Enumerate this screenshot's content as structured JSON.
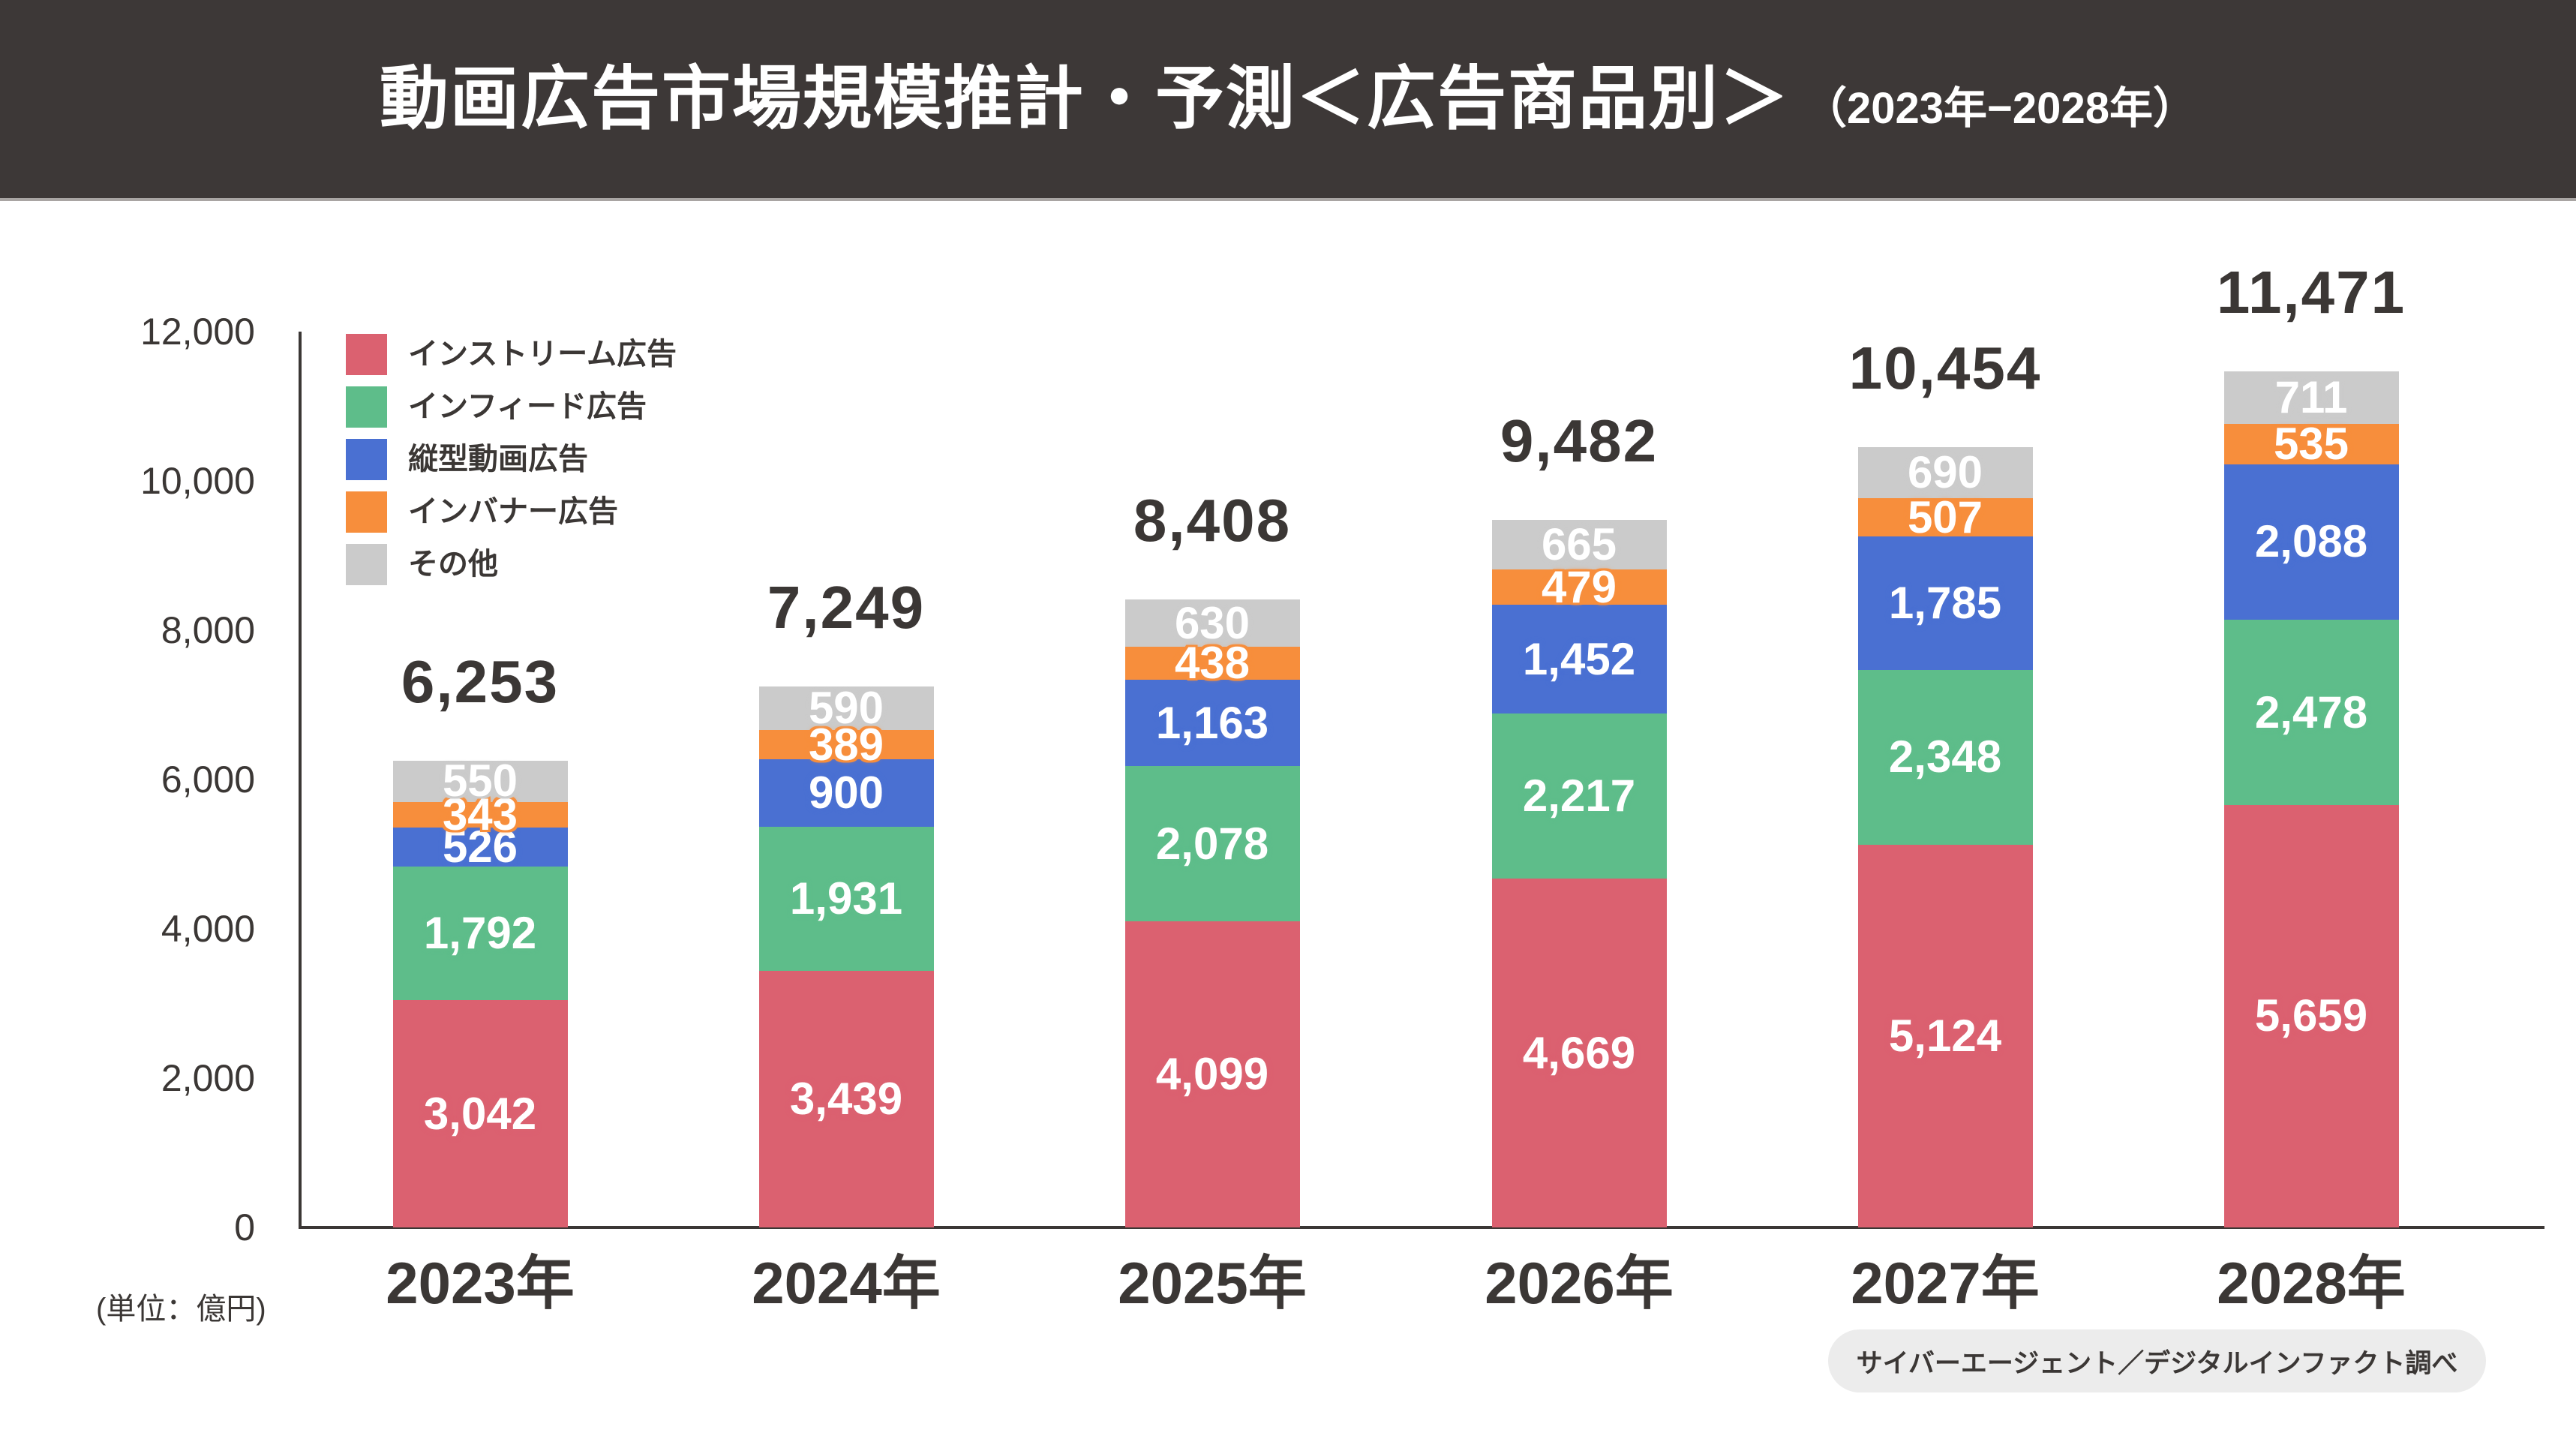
{
  "header": {
    "title_main": "動画広告市場規模推計・予測＜広告商品別＞",
    "title_sub": "（2023年−2028年）"
  },
  "chart_data": {
    "type": "bar",
    "stacked": true,
    "title": "動画広告市場規模推計・予測＜広告商品別＞（2023年−2028年）",
    "unit_label": "(単位：億円)",
    "categories": [
      "2023年",
      "2024年",
      "2025年",
      "2026年",
      "2027年",
      "2028年"
    ],
    "totals": [
      "6,253",
      "7,249",
      "8,408",
      "9,482",
      "10,454",
      "11,471"
    ],
    "series": [
      {
        "name": "インストリーム広告",
        "color": "#DB6170",
        "values": [
          3042,
          3439,
          4099,
          4669,
          5124,
          5659
        ]
      },
      {
        "name": "インフィード広告",
        "color": "#5EBD8A",
        "values": [
          1792,
          1931,
          2078,
          2217,
          2348,
          2478
        ]
      },
      {
        "name": "縦型動画広告",
        "color": "#4A70D2",
        "values": [
          526,
          900,
          1163,
          1452,
          1785,
          2088
        ]
      },
      {
        "name": "インバナー広告",
        "color": "#F78E3C",
        "values": [
          343,
          389,
          438,
          479,
          507,
          535
        ]
      },
      {
        "name": "その他",
        "color": "#CBCBCB",
        "values": [
          550,
          590,
          630,
          665,
          690,
          711
        ]
      }
    ],
    "y_axis": {
      "max": 12000,
      "ticks": [
        {
          "label": "0",
          "value": 0
        },
        {
          "label": "2,000",
          "value": 2000
        },
        {
          "label": "4,000",
          "value": 4000
        },
        {
          "label": "6,000",
          "value": 6000
        },
        {
          "label": "8,000",
          "value": 8000
        },
        {
          "label": "10,000",
          "value": 10000
        },
        {
          "label": "12,000",
          "value": 12000
        }
      ]
    },
    "legend_position": "top-left",
    "grid": false
  },
  "footer": {
    "source_badge": "サイバーエージェント／デジタルインファクト調べ"
  },
  "colors": {
    "header_bg": "#3D3837",
    "header_border": "#A9A5A3",
    "text_dark": "#3B3735",
    "badge_bg": "#ECECEC"
  }
}
